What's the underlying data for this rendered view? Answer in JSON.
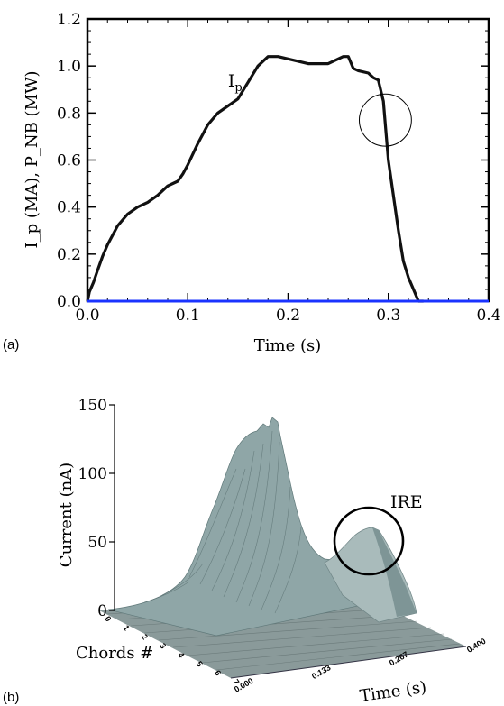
{
  "panels": [
    {
      "label": "(a)",
      "chart_data": {
        "type": "line",
        "xlabel": "Time (s)",
        "ylabel": "I_p (MA), P_NB (MW)",
        "xlim": [
          0.0,
          0.4
        ],
        "ylim": [
          0.0,
          1.2
        ],
        "xticks": [
          0.0,
          0.1,
          0.2,
          0.3,
          0.4
        ],
        "yticks": [
          0.0,
          0.2,
          0.4,
          0.6,
          0.8,
          1.0,
          1.2
        ],
        "xtick_labels": [
          "0.0",
          "0.1",
          "0.2",
          "0.3",
          "0.4"
        ],
        "ytick_labels": [
          "0.0",
          "0.2",
          "0.4",
          "0.6",
          "0.8",
          "1.0",
          "1.2"
        ],
        "grid": false,
        "series": [
          {
            "name": "Ip",
            "color": "#111111",
            "x": [
              0.0,
              0.002,
              0.006,
              0.01,
              0.015,
              0.02,
              0.03,
              0.04,
              0.05,
              0.06,
              0.07,
              0.08,
              0.09,
              0.095,
              0.1,
              0.11,
              0.12,
              0.13,
              0.14,
              0.15,
              0.16,
              0.17,
              0.18,
              0.19,
              0.2,
              0.22,
              0.24,
              0.255,
              0.26,
              0.265,
              0.27,
              0.28,
              0.285,
              0.29,
              0.295,
              0.3,
              0.305,
              0.31,
              0.315,
              0.32,
              0.325,
              0.33,
              0.335
            ],
            "y": [
              0.0,
              0.04,
              0.08,
              0.13,
              0.19,
              0.24,
              0.32,
              0.37,
              0.4,
              0.42,
              0.45,
              0.49,
              0.51,
              0.54,
              0.58,
              0.67,
              0.75,
              0.8,
              0.83,
              0.86,
              0.93,
              1.0,
              1.04,
              1.04,
              1.03,
              1.01,
              1.01,
              1.04,
              1.04,
              0.99,
              0.98,
              0.97,
              0.95,
              0.94,
              0.85,
              0.6,
              0.45,
              0.3,
              0.17,
              0.1,
              0.05,
              0.0,
              0.0
            ]
          },
          {
            "name": "PNB",
            "color": "#1a33ff",
            "x": [
              0.0,
              0.4
            ],
            "y": [
              0.0,
              0.0
            ]
          }
        ],
        "annotations": [
          {
            "text": "I",
            "sub": "p",
            "at": [
              0.15,
              0.92
            ]
          },
          {
            "shape": "circle",
            "center": [
              0.297,
              0.77
            ],
            "radius_x": 0.026
          }
        ]
      }
    },
    {
      "label": "(b)",
      "chart_data": {
        "type": "surface3d",
        "zlabel": "Current (nA)",
        "xlabel": "Time (s)",
        "ylabel": "Chords #",
        "zticks": [
          0,
          50,
          100,
          150
        ],
        "zlim": [
          0,
          150
        ],
        "time_tick_labels": [
          "0.000",
          "0.133",
          "0.267",
          "0.400"
        ],
        "chord_tick_labels": [
          "0",
          "1",
          "2",
          "3",
          "4",
          "5",
          "6",
          "7"
        ],
        "peaks": [
          {
            "name": "main",
            "time": 0.2,
            "current": 137
          },
          {
            "name": "IRE",
            "time": 0.3,
            "current": 60
          }
        ],
        "annotations": [
          {
            "text": "IRE"
          },
          {
            "shape": "circle",
            "around": "IRE"
          }
        ]
      }
    }
  ]
}
